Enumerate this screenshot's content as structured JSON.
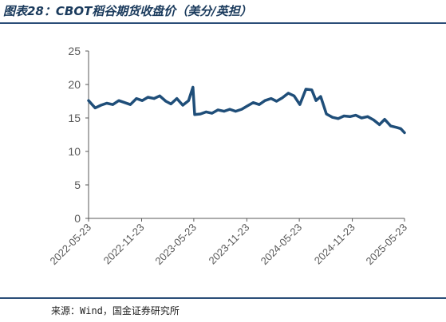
{
  "figure": {
    "title": "图表28：CBOT稻谷期货收盘价（美分/英担）",
    "source": "来源：Wind，国金证券研究所"
  },
  "colors": {
    "line": "#1f4e79",
    "axis": "#595959",
    "rule": "#2a4d78"
  },
  "chart_data": {
    "type": "line",
    "title": "",
    "xlabel": "",
    "ylabel": "",
    "ylim": [
      0,
      25
    ],
    "yticks": [
      "0",
      "5",
      "10",
      "15",
      "20",
      "25"
    ],
    "xticks": [
      "2022-05-23",
      "2022-11-23",
      "2023-05-23",
      "2023-11-23",
      "2024-05-23",
      "2024-11-23",
      "2025-05-23"
    ],
    "grid": false,
    "legend": "none",
    "series": [
      {
        "x": [
          "2022-05-23",
          "2022-06-15",
          "2022-07-05",
          "2022-07-25",
          "2022-08-15",
          "2022-09-05",
          "2022-09-25",
          "2022-10-15",
          "2022-11-05",
          "2022-11-25",
          "2022-12-15",
          "2023-01-05",
          "2023-01-25",
          "2023-02-15",
          "2023-03-05",
          "2023-03-25",
          "2023-04-15",
          "2023-05-05",
          "2023-05-20",
          "2023-05-26",
          "2023-06-15",
          "2023-07-05",
          "2023-07-25",
          "2023-08-15",
          "2023-09-05",
          "2023-09-25",
          "2023-10-15",
          "2023-11-05",
          "2023-11-25",
          "2023-12-15",
          "2024-01-05",
          "2024-01-25",
          "2024-02-15",
          "2024-03-05",
          "2024-03-25",
          "2024-04-15",
          "2024-05-05",
          "2024-05-25",
          "2024-06-15",
          "2024-07-05",
          "2024-07-20",
          "2024-08-05",
          "2024-08-25",
          "2024-09-15",
          "2024-10-05",
          "2024-10-25",
          "2024-11-15",
          "2024-12-05",
          "2024-12-25",
          "2025-01-15",
          "2025-02-05",
          "2025-02-25",
          "2025-03-15",
          "2025-04-05",
          "2025-04-25",
          "2025-05-10",
          "2025-05-23"
        ],
        "values": [
          17.6,
          16.5,
          16.9,
          17.2,
          17.0,
          17.6,
          17.3,
          17.0,
          17.9,
          17.6,
          18.1,
          17.9,
          18.3,
          17.5,
          17.1,
          17.9,
          16.9,
          17.6,
          19.6,
          15.5,
          15.6,
          15.9,
          15.7,
          16.2,
          16.0,
          16.3,
          16.0,
          16.3,
          16.8,
          17.3,
          17.0,
          17.6,
          17.9,
          17.5,
          18.0,
          18.7,
          18.3,
          17.0,
          19.3,
          19.2,
          17.6,
          18.2,
          15.6,
          15.1,
          14.9,
          15.3,
          15.2,
          15.4,
          15.0,
          15.2,
          14.7,
          14.0,
          14.8,
          13.8,
          13.6,
          13.4,
          12.8
        ]
      }
    ]
  }
}
